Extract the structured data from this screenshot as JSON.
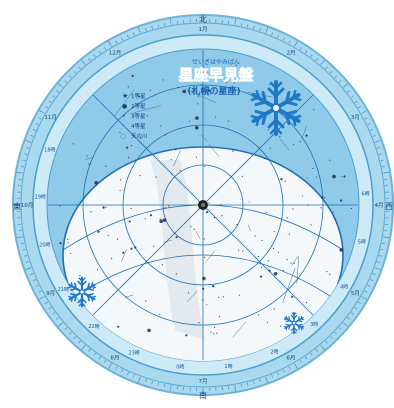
{
  "planisphere": {
    "title": "星座早見盤",
    "title_ruby": "せいざはやみばん",
    "subtitle": "(札幌の星座)",
    "legend": [
      {
        "symbol": "★",
        "label": "1等星"
      },
      {
        "symbol": "●",
        "label": "2等星"
      },
      {
        "symbol": "•",
        "label": "3等星"
      },
      {
        "symbol": "·",
        "label": "4等星"
      },
      {
        "symbol": "◌",
        "label": "天の川"
      }
    ],
    "cardinal_labels": {
      "top": "北",
      "left": "東",
      "right": "西",
      "bottom": "南"
    },
    "month_labels": [
      "1月",
      "2月",
      "3月",
      "4月",
      "5月",
      "6月",
      "7月",
      "8月",
      "9月",
      "10月",
      "11月",
      "12月"
    ],
    "hour_labels": [
      "18時",
      "19時",
      "20時",
      "21時",
      "22時",
      "23時",
      "0時",
      "1時",
      "2時",
      "3時",
      "4時",
      "5時",
      "6時"
    ],
    "decorations": [
      "snowflake-large",
      "snowflake-left",
      "snowflake-right"
    ],
    "colors": {
      "outer_ring": "#a9d8ef",
      "inner_ring": "#cfeaf7",
      "sky_blue": "#8fcbe8",
      "sky_white": "#f4f8fb",
      "grid_line": "#1d6fb8",
      "title_blue": "#1a5fb4",
      "snowflake": "#1f78c8"
    }
  }
}
